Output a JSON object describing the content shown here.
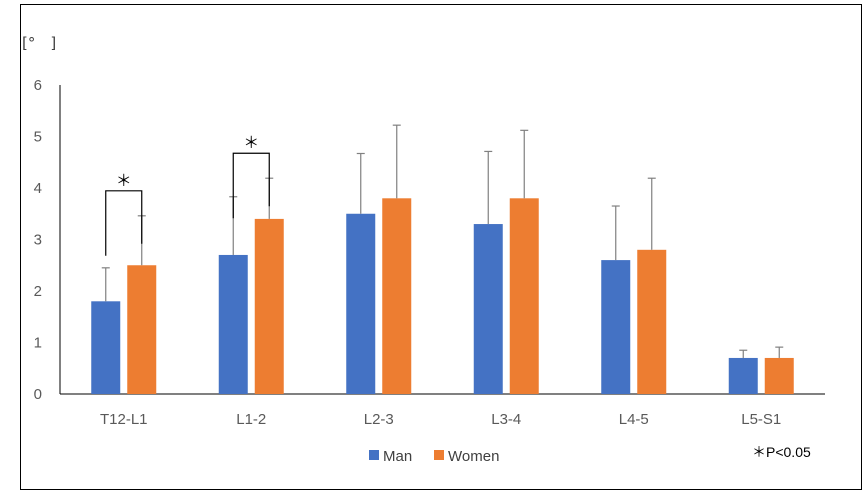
{
  "chart_data": {
    "type": "bar",
    "y_unit_label": "[°　]",
    "categories": [
      "T12-L1",
      "L1-2",
      "L2-3",
      "L3-4",
      "L4-5",
      "L5-S1"
    ],
    "series": [
      {
        "name": "Man",
        "color": "#4472C4",
        "values": [
          1.8,
          2.7,
          3.5,
          3.3,
          2.6,
          0.7
        ],
        "error": [
          0.65,
          1.13,
          1.17,
          1.41,
          1.05,
          0.15
        ]
      },
      {
        "name": "Women",
        "color": "#ED7D31",
        "values": [
          2.5,
          3.4,
          3.8,
          3.8,
          2.8,
          0.7
        ],
        "error": [
          0.96,
          0.79,
          1.42,
          1.32,
          1.39,
          0.21
        ]
      }
    ],
    "ylim": [
      0,
      6
    ],
    "yticks": [
      "0",
      "1",
      "2",
      "3",
      "4",
      "5",
      "6"
    ],
    "grid": false,
    "legend_position": "bottom",
    "significance": [
      {
        "category_index": 0,
        "symbol": "＊"
      },
      {
        "category_index": 1,
        "symbol": "＊"
      }
    ],
    "note": "＊P<0.05"
  }
}
